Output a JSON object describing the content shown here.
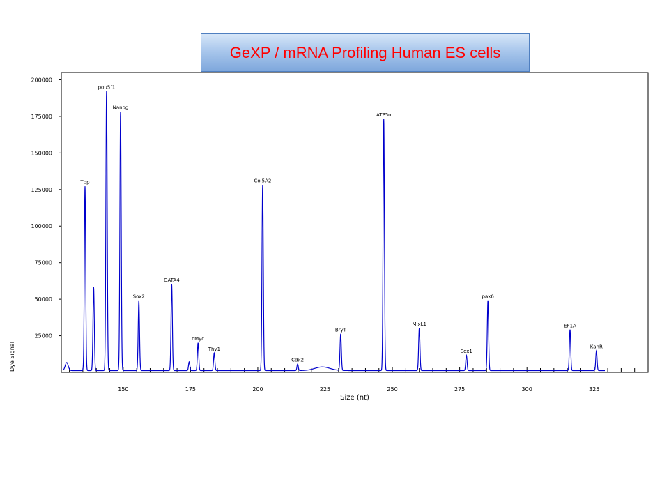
{
  "title": "GeXP / mRNA Profiling Human ES cells",
  "chart_data": {
    "type": "line",
    "xlabel": "Size (nt)",
    "ylabel": "Dye Signal",
    "xlim": [
      127,
      345
    ],
    "ylim": [
      0,
      205000
    ],
    "x_ticks": [
      150,
      175,
      200,
      225,
      250,
      275,
      300,
      325
    ],
    "y_ticks": [
      25000,
      50000,
      75000,
      100000,
      125000,
      150000,
      175000,
      200000
    ],
    "y_tick_labels": [
      "25000",
      "50000",
      "75000",
      "100000",
      "125000",
      "150000",
      "175000",
      "200000"
    ],
    "series_color": "#0000cc",
    "peaks": [
      {
        "label": "Tbp",
        "x": 135.8,
        "y": 126000
      },
      {
        "label": "",
        "x": 139.0,
        "y": 57000
      },
      {
        "label": "pou5f1",
        "x": 143.8,
        "y": 191000
      },
      {
        "label": "Nanog",
        "x": 149.0,
        "y": 177000
      },
      {
        "label": "Sox2",
        "x": 155.8,
        "y": 48000
      },
      {
        "label": "GATA4",
        "x": 168.0,
        "y": 59000
      },
      {
        "label": "",
        "x": 174.5,
        "y": 6000
      },
      {
        "label": "cMyc",
        "x": 177.8,
        "y": 19000
      },
      {
        "label": "Thy1",
        "x": 183.8,
        "y": 12000
      },
      {
        "label": "Col5A2",
        "x": 201.8,
        "y": 127000
      },
      {
        "label": "Cdx2",
        "x": 214.8,
        "y": 4500
      },
      {
        "label": "BryT",
        "x": 230.8,
        "y": 25000
      },
      {
        "label": "ATP5o",
        "x": 246.8,
        "y": 172000
      },
      {
        "label": "MixL1",
        "x": 260.0,
        "y": 29000
      },
      {
        "label": "Sox1",
        "x": 277.5,
        "y": 10500
      },
      {
        "label": "pax6",
        "x": 285.5,
        "y": 48000
      },
      {
        "label": "EF1A",
        "x": 316.0,
        "y": 28000
      },
      {
        "label": "KanR",
        "x": 325.8,
        "y": 13500
      }
    ]
  }
}
